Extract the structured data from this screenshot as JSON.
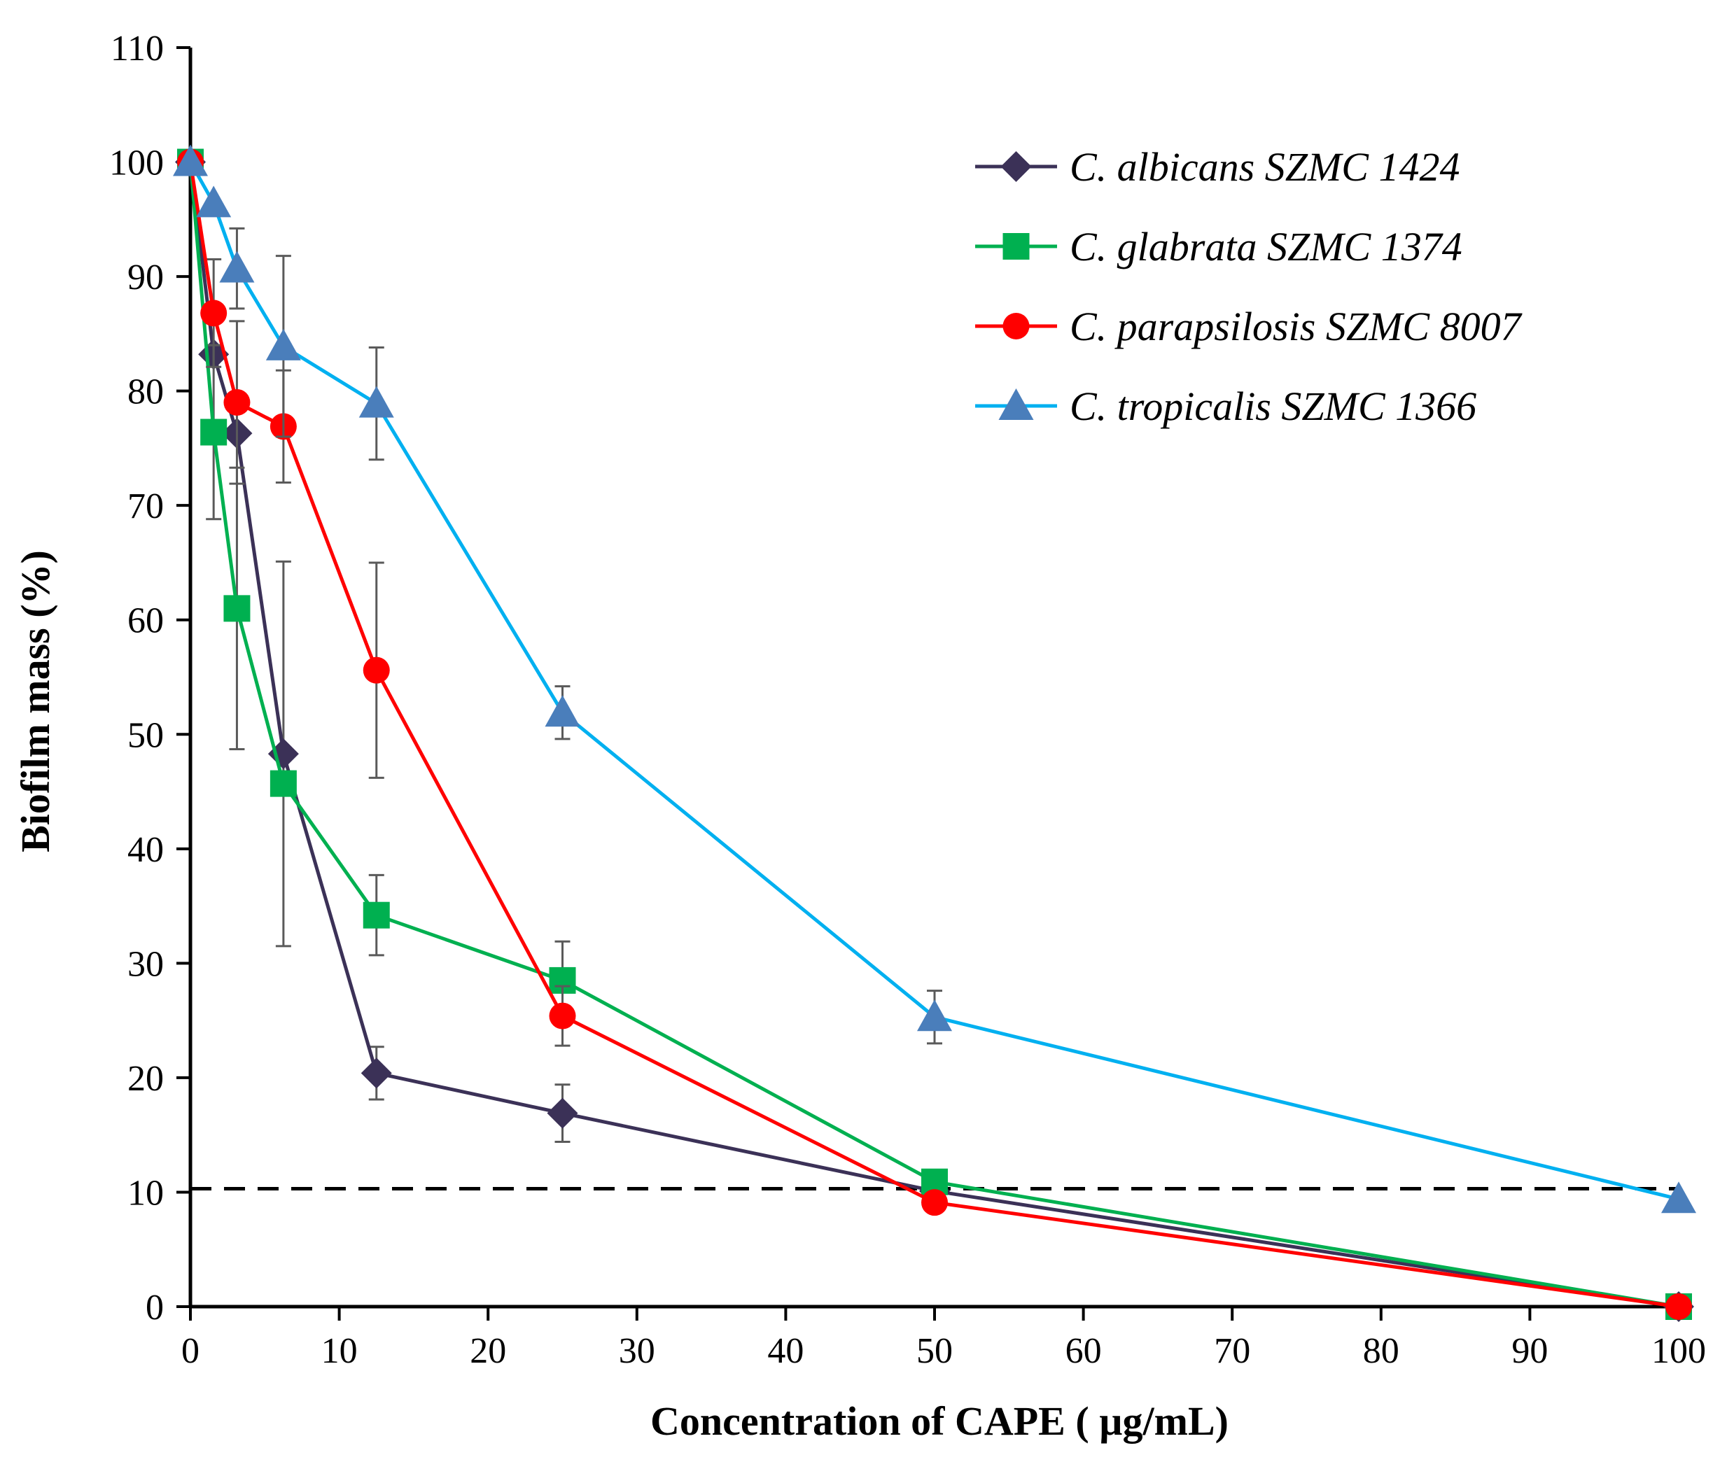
{
  "chart_data": {
    "type": "line",
    "title": "",
    "xlabel": "Concentration of CAPE ( µg/mL)",
    "ylabel": "Biofilm mass (%)",
    "xlim": [
      0,
      100
    ],
    "ylim": [
      0,
      110
    ],
    "x_ticks": [
      0,
      10,
      20,
      30,
      40,
      50,
      60,
      70,
      80,
      90,
      100
    ],
    "y_ticks": [
      0,
      10,
      20,
      30,
      40,
      50,
      60,
      70,
      80,
      90,
      100,
      110
    ],
    "x": [
      0,
      1.56,
      3.125,
      6.25,
      12.5,
      25,
      50,
      100
    ],
    "grid": false,
    "legend_position": "top-right",
    "reference_line": {
      "y": 10.3,
      "style": "dashed",
      "color": "#000000"
    },
    "series": [
      {
        "name": "C. albicans SZMC 1424",
        "color": "#3b3157",
        "marker": "diamond",
        "values": [
          100,
          83.2,
          76.3,
          48.3,
          20.4,
          16.9,
          10.1,
          0
        ],
        "errors": [
          0,
          0,
          0,
          16.8,
          2.3,
          2.5,
          0,
          0
        ]
      },
      {
        "name": "C. glabrata SZMC 1374",
        "color": "#00b050",
        "marker": "square",
        "values": [
          100,
          76.4,
          61.0,
          45.7,
          34.2,
          28.5,
          10.9,
          0
        ],
        "errors": [
          0,
          7.6,
          12.3,
          0,
          3.5,
          3.4,
          0.8,
          0
        ]
      },
      {
        "name": "C. parapsilosis SZMC 8007",
        "color": "#ff0000",
        "marker": "circle",
        "values": [
          100,
          86.8,
          79.0,
          76.9,
          55.6,
          25.4,
          9.1,
          0
        ],
        "errors": [
          0,
          4.7,
          7.1,
          4.9,
          9.4,
          2.6,
          0,
          0
        ]
      },
      {
        "name": "C. tropicalis SZMC 1366",
        "color": "#00b0f0",
        "marker_color": "#4a7ebb",
        "marker": "triangle",
        "values": [
          100,
          96.4,
          90.7,
          83.9,
          78.9,
          51.9,
          25.3,
          9.4
        ],
        "errors": [
          0,
          0,
          3.5,
          7.9,
          4.9,
          2.3,
          2.3,
          0
        ]
      }
    ]
  }
}
